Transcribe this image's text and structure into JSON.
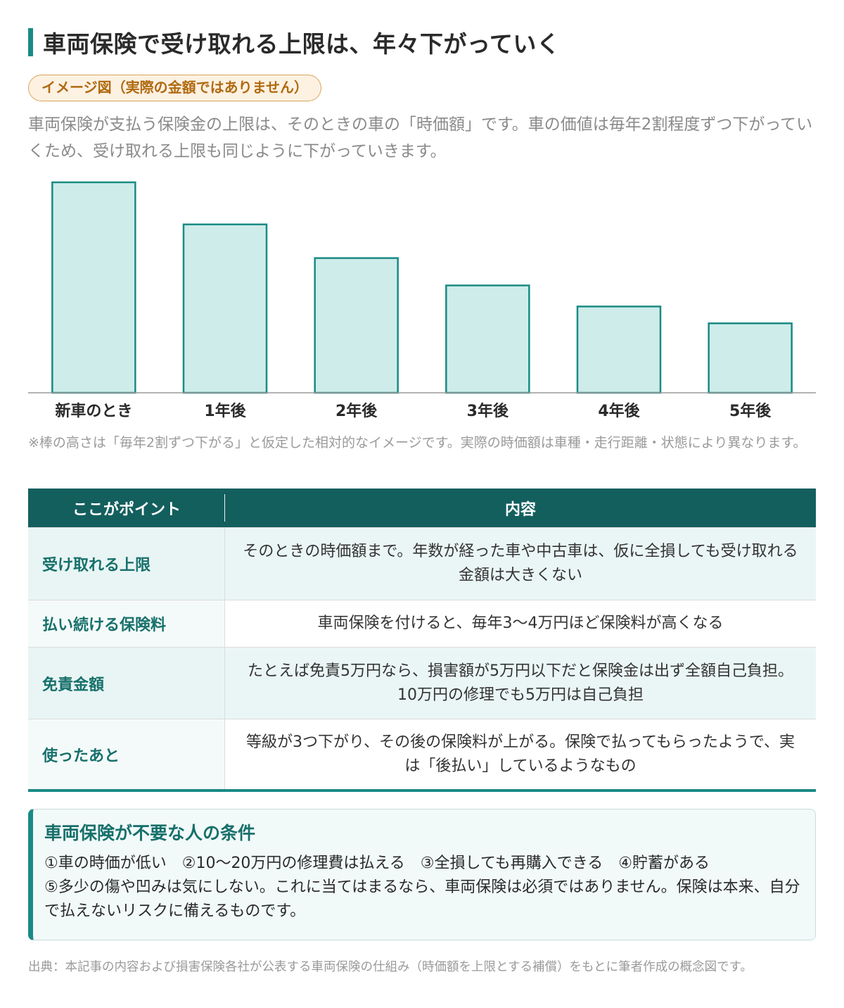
{
  "title": "車両保険で受け取れる上限は、年々下がっていく",
  "badge": "イメージ図（実際の金額ではありません）",
  "intro": "車両保険が支払う保険金の上限は、そのときの車の「時価額」です。車の価値は毎年2割程度ずつ下がっていくため、受け取れる上限も同じように下がっていきます。",
  "chart_data": {
    "type": "bar",
    "categories": [
      "新車のとき",
      "1年後",
      "2年後",
      "3年後",
      "4年後",
      "5年後"
    ],
    "values": [
      100,
      80,
      64,
      51,
      41,
      33
    ],
    "title": "",
    "xlabel": "",
    "ylabel": "",
    "ylim": [
      0,
      100
    ],
    "grid": false,
    "bar_fill": "#ceecea",
    "bar_stroke": "#1a8a85"
  },
  "note": "※棒の高さは「毎年2割ずつ下がる」と仮定した相対的なイメージです。実際の時価額は車種・走行距離・状態により異なります。",
  "table": {
    "headers": [
      "ここがポイント",
      "内容"
    ],
    "rows": [
      {
        "point": "受け取れる上限",
        "content": "そのときの時価額まで。年数が経った車や中古車は、仮に全損しても受け取れる金額は大きくない"
      },
      {
        "point": "払い続ける保険料",
        "content": "車両保険を付けると、毎年3〜4万円ほど保険料が高くなる"
      },
      {
        "point": "免責金額",
        "content": "たとえば免責5万円なら、損害額が5万円以下だと保険金は出ず全額自己負担。10万円の修理でも5万円は自己負担"
      },
      {
        "point": "使ったあと",
        "content": "等級が3つ下がり、その後の保険料が上がる。保険で払ってもらったようで、実は「後払い」しているようなもの"
      }
    ]
  },
  "conditions": {
    "title": "車両保険が不要な人の条件",
    "line1": "①車の時価が低い　②10〜20万円の修理費は払える　③全損しても再購入できる　④貯蓄がある",
    "line2": "⑤多少の傷や凹みは気にしない。これに当てはまるなら、車両保険は必須ではありません。保険は本来、自分で払えないリスクに備えるものです。"
  },
  "source": "出典：本記事の内容および損害保険各社が公表する車両保険の仕組み（時価額を上限とする補償）をもとに筆者作成の概念図です。",
  "colors": {
    "accent": "#1a8a85",
    "header_bg": "#135f5e",
    "badge_border": "#d9a45a",
    "badge_text": "#b06a10"
  }
}
